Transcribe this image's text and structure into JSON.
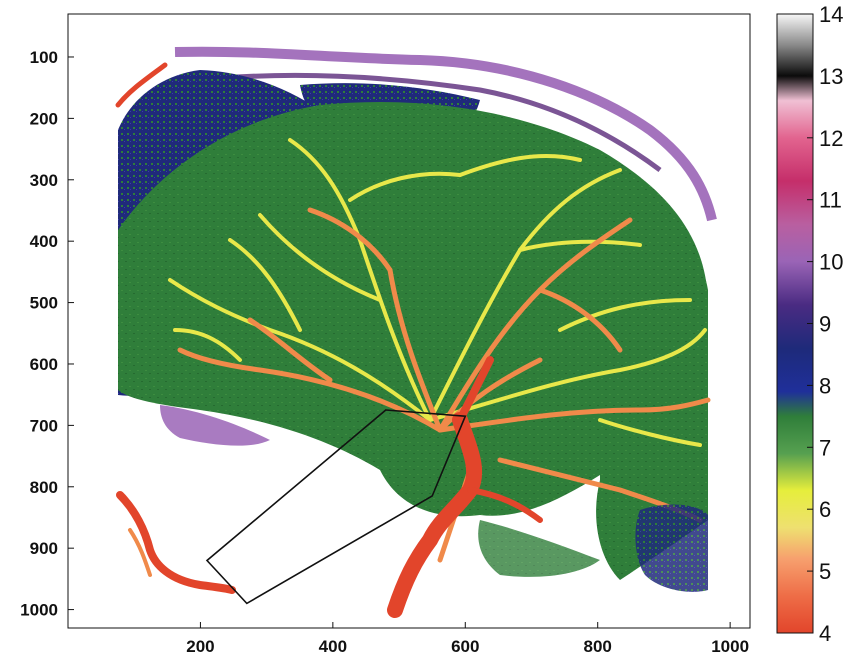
{
  "chart_data": {
    "type": "heatmap",
    "title": "",
    "xlabel": "",
    "ylabel": "",
    "xlim": [
      0,
      1030
    ],
    "ylim": [
      1030,
      30
    ],
    "x_ticks": [
      "200",
      "400",
      "600",
      "800",
      "1000"
    ],
    "y_ticks": [
      "100",
      "200",
      "300",
      "400",
      "500",
      "600",
      "700",
      "800",
      "900",
      "1000"
    ],
    "colorbar": {
      "range": [
        4,
        14
      ],
      "ticks": [
        "4",
        "5",
        "6",
        "7",
        "8",
        "9",
        "10",
        "11",
        "12",
        "13",
        "14"
      ],
      "stops": [
        {
          "value": 4.0,
          "color": "#e2452b"
        },
        {
          "value": 4.6,
          "color": "#ee6d47"
        },
        {
          "value": 5.2,
          "color": "#f7a06e"
        },
        {
          "value": 5.7,
          "color": "#eee070"
        },
        {
          "value": 6.3,
          "color": "#e6ee3c"
        },
        {
          "value": 6.9,
          "color": "#56a050"
        },
        {
          "value": 7.5,
          "color": "#2f7e3a"
        },
        {
          "value": 7.9,
          "color": "#1f2f9a"
        },
        {
          "value": 8.6,
          "color": "#1e2a7a"
        },
        {
          "value": 9.3,
          "color": "#4a2b82"
        },
        {
          "value": 10.0,
          "color": "#9a64b6"
        },
        {
          "value": 10.6,
          "color": "#b95fa0"
        },
        {
          "value": 11.3,
          "color": "#c52e6a"
        },
        {
          "value": 12.0,
          "color": "#e2648f"
        },
        {
          "value": 12.6,
          "color": "#f0c0d4"
        },
        {
          "value": 13.0,
          "color": "#0b0b0b"
        },
        {
          "value": 13.5,
          "color": "#8a8a8a"
        },
        {
          "value": 14.0,
          "color": "#f7f7f7"
        }
      ]
    },
    "annotation": {
      "shape": "rectangle-outline",
      "corners": [
        [
          480,
          675
        ],
        [
          600,
          685
        ],
        [
          550,
          815
        ],
        [
          210,
          920
        ],
        [
          270,
          990
        ]
      ]
    }
  },
  "colors": {
    "vessel_red": "#e2452b",
    "vessel_orange": "#f08a4a",
    "vessel_yellow": "#e8e84a",
    "tissue_green": "#2f7e3a",
    "tissue_green_light": "#4f9a45",
    "deep_navy": "#1f2a8a",
    "purple": "#7a3a9a",
    "magenta": "#b95fa0"
  }
}
